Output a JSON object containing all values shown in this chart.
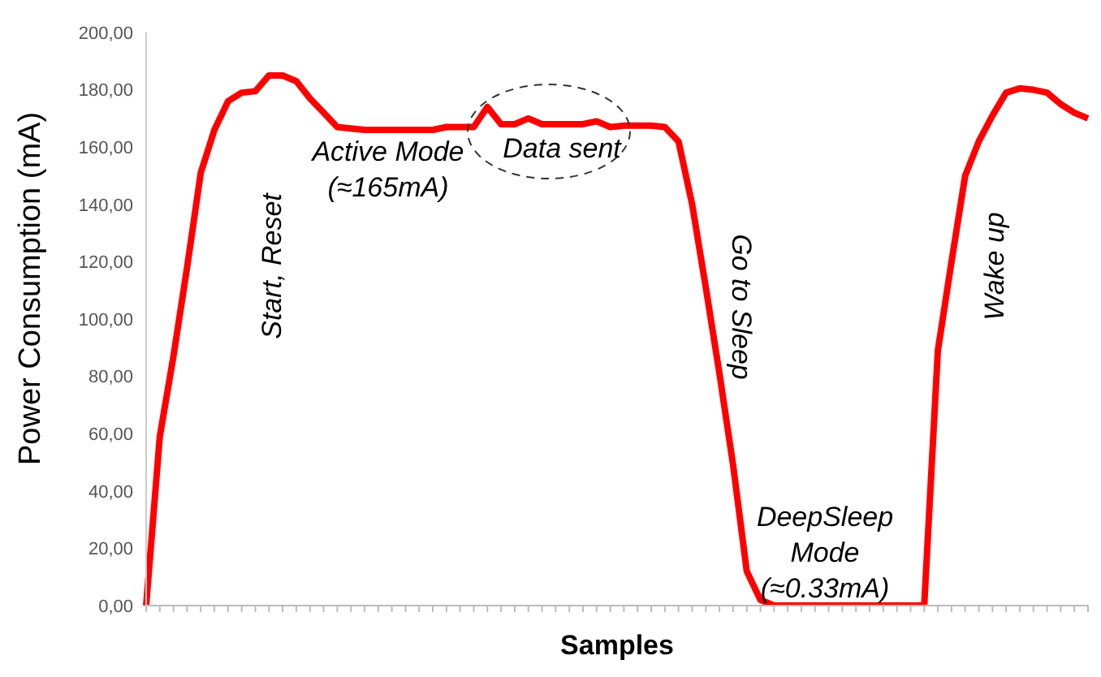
{
  "chart_data": {
    "type": "line",
    "xlabel": "Samples",
    "ylabel": "Power Consumption (mA)",
    "categories": [
      null,
      null,
      null,
      null,
      null,
      null,
      null,
      null,
      null,
      null,
      null,
      null,
      null,
      null,
      null,
      null,
      null,
      null,
      null,
      null,
      null,
      null,
      null,
      null,
      null,
      null,
      null,
      null,
      null,
      null,
      null,
      null,
      null,
      null,
      null,
      null,
      null,
      null,
      null,
      null,
      null,
      null,
      null,
      null,
      null,
      null,
      null,
      null,
      null,
      null,
      null,
      null,
      null,
      null,
      null,
      null,
      null,
      null,
      null,
      null,
      null,
      null,
      null,
      null,
      null,
      null,
      null,
      null,
      null,
      null
    ],
    "series": [
      {
        "color": "#ff0000",
        "values": [
          0,
          59,
          87,
          118,
          151,
          166,
          176,
          179,
          179.5,
          185,
          185,
          183,
          177,
          172,
          167,
          166.5,
          166,
          166,
          166,
          166,
          166,
          166,
          167,
          167,
          167,
          174,
          168,
          168,
          170,
          168,
          168,
          168,
          168,
          169,
          167,
          167.5,
          167.5,
          167.5,
          167,
          162,
          140,
          111,
          81,
          49,
          12,
          2,
          0,
          0,
          0,
          0,
          0,
          0,
          0,
          0,
          0,
          0,
          0,
          0,
          89,
          120,
          150,
          162,
          171,
          179,
          180.5,
          180,
          179,
          175,
          172,
          170
        ]
      }
    ],
    "ylim": [
      0,
      200
    ],
    "yticks": [
      {
        "value": 0,
        "label": "0,00"
      },
      {
        "value": 20,
        "label": "20,00"
      },
      {
        "value": 40,
        "label": "40,00"
      },
      {
        "value": 60,
        "label": "60,00"
      },
      {
        "value": 80,
        "label": "80,00"
      },
      {
        "value": 100,
        "label": "100,00"
      },
      {
        "value": 120,
        "label": "120,00"
      },
      {
        "value": 140,
        "label": "140,00"
      },
      {
        "value": 160,
        "label": "160,00"
      },
      {
        "value": 180,
        "label": "180,00"
      },
      {
        "value": 200,
        "label": "200,00"
      }
    ],
    "grid": false,
    "legend": false,
    "marker": "none",
    "line_style": "solid",
    "tick_labels": "y",
    "annotations": [
      "Start, Reset",
      "Active Mode\n(≈165mA)",
      "Data sent",
      "Go to Sleep",
      "DeepSleep\nMode\n(≈0.33mA)",
      "Wake up"
    ]
  }
}
